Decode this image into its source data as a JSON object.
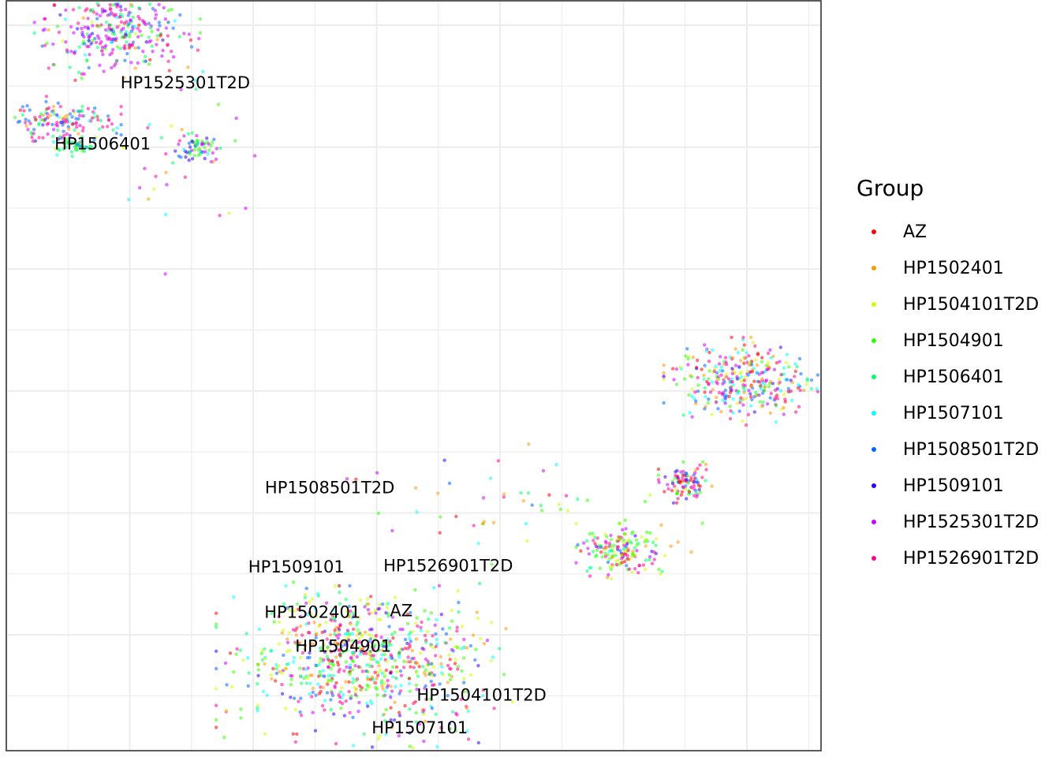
{
  "chart_data": {
    "type": "scatter",
    "title": "",
    "xlabel": "",
    "ylabel": "",
    "xlim": [
      -3.0,
      3.6
    ],
    "ylim": [
      -1.95,
      4.2
    ],
    "grid": true,
    "axis_ticks_shown": false,
    "legend": {
      "title": "Group",
      "placement": "right",
      "entries": [
        "AZ",
        "HP1502401",
        "HP1504101T2D",
        "HP1504901",
        "HP1506401",
        "HP1507101",
        "HP1508501T2D",
        "HP1509101",
        "HP1525301T2D",
        "HP1526901T2D"
      ]
    },
    "series": [
      {
        "name": "AZ",
        "color": "#FF0000"
      },
      {
        "name": "HP1502401",
        "color": "#FF9900"
      },
      {
        "name": "HP1504101T2D",
        "color": "#CCFF00"
      },
      {
        "name": "HP1504901",
        "color": "#33FF00"
      },
      {
        "name": "HP1506401",
        "color": "#00FF66"
      },
      {
        "name": "HP1507101",
        "color": "#00FFFF"
      },
      {
        "name": "HP1508501T2D",
        "color": "#0066FF"
      },
      {
        "name": "HP1509101",
        "color": "#3300FF"
      },
      {
        "name": "HP1525301T2D",
        "color": "#CC00FF"
      },
      {
        "name": "HP1526901T2D",
        "color": "#FF0099"
      }
    ],
    "clusters": [
      {
        "center": [
          -2.1,
          3.98
        ],
        "spread": [
          0.28,
          0.18
        ],
        "n": 340,
        "mix": [
          0.05,
          0.05,
          0.05,
          0.12,
          0.2,
          0.05,
          0.15,
          0.05,
          0.5,
          0.2
        ]
      },
      {
        "center": [
          -2.55,
          3.2
        ],
        "spread": [
          0.2,
          0.09
        ],
        "n": 150,
        "mix": [
          0.05,
          0.1,
          0.05,
          0.05,
          0.3,
          0.1,
          0.3,
          0.05,
          0.1,
          0.4
        ]
      },
      {
        "center": [
          -2.45,
          3.02
        ],
        "spread": [
          0.08,
          0.04
        ],
        "n": 40,
        "mix": [
          0,
          0,
          0,
          0.2,
          0.8,
          0.1,
          0.1,
          0,
          0,
          0
        ]
      },
      {
        "center": [
          -1.45,
          3.0
        ],
        "spread": [
          0.08,
          0.05
        ],
        "n": 60,
        "mix": [
          0,
          0,
          0,
          0.4,
          0.3,
          0.2,
          0.3,
          0.4,
          0.4,
          0
        ]
      },
      {
        "center": [
          -1.6,
          2.8
        ],
        "spread": [
          0.3,
          0.35
        ],
        "n": 35,
        "mix": [
          0.1,
          0.3,
          0.1,
          0.1,
          0.2,
          0.3,
          0.1,
          0,
          0.2,
          0.2
        ]
      },
      {
        "center": [
          -0.1,
          -1.27
        ],
        "spread": [
          0.5,
          0.28
        ],
        "n": 650,
        "mix": [
          0.2,
          0.3,
          0.3,
          0.3,
          0.3,
          0.4,
          0.3,
          0.2,
          0.2,
          0.4
        ]
      },
      {
        "center": [
          -0.3,
          -1.0
        ],
        "spread": [
          0.3,
          0.18
        ],
        "n": 120,
        "mix": [
          0.1,
          0.3,
          0.4,
          0.3,
          0.2,
          0.1,
          0.1,
          0.1,
          0.2,
          0.2
        ]
      },
      {
        "center": [
          2.0,
          -0.3
        ],
        "spread": [
          0.16,
          0.1
        ],
        "n": 170,
        "mix": [
          0.1,
          0.2,
          0.4,
          0.6,
          0.3,
          0.1,
          0.1,
          0.1,
          0.3,
          0.4
        ]
      },
      {
        "center": [
          2.5,
          0.25
        ],
        "spread": [
          0.09,
          0.07
        ],
        "n": 100,
        "mix": [
          0.3,
          0.1,
          0.1,
          0.2,
          0.1,
          0.1,
          0.1,
          0.2,
          0.3,
          0.5
        ]
      },
      {
        "center": [
          2.95,
          1.08
        ],
        "spread": [
          0.26,
          0.15
        ],
        "n": 330,
        "mix": [
          0.3,
          0.3,
          0.3,
          0.2,
          0.1,
          0.4,
          0.3,
          0.1,
          0.4,
          0.4
        ]
      },
      {
        "center": [
          1.2,
          -0.02
        ],
        "spread": [
          0.6,
          0.25
        ],
        "n": 55,
        "mix": [
          0.1,
          0.3,
          0.2,
          0.2,
          0.3,
          0.1,
          0.1,
          0.1,
          0.2,
          0.2
        ]
      }
    ],
    "annotations": [
      {
        "text": "HP1525301T2D",
        "x": -1.55,
        "y": 3.52
      },
      {
        "text": "HP1506401",
        "x": -2.22,
        "y": 3.02
      },
      {
        "text": "HP1508501T2D",
        "x": -0.38,
        "y": 0.2
      },
      {
        "text": "HP1509101",
        "x": -0.65,
        "y": -0.45
      },
      {
        "text": "HP1526901T2D",
        "x": 0.58,
        "y": -0.44
      },
      {
        "text": "HP1502401",
        "x": -0.52,
        "y": -0.82
      },
      {
        "text": "AZ",
        "x": 0.2,
        "y": -0.81
      },
      {
        "text": "HP1504901",
        "x": -0.27,
        "y": -1.1
      },
      {
        "text": "HP1504101T2D",
        "x": 0.85,
        "y": -1.5
      },
      {
        "text": "HP1507101",
        "x": 0.35,
        "y": -1.77
      }
    ]
  }
}
